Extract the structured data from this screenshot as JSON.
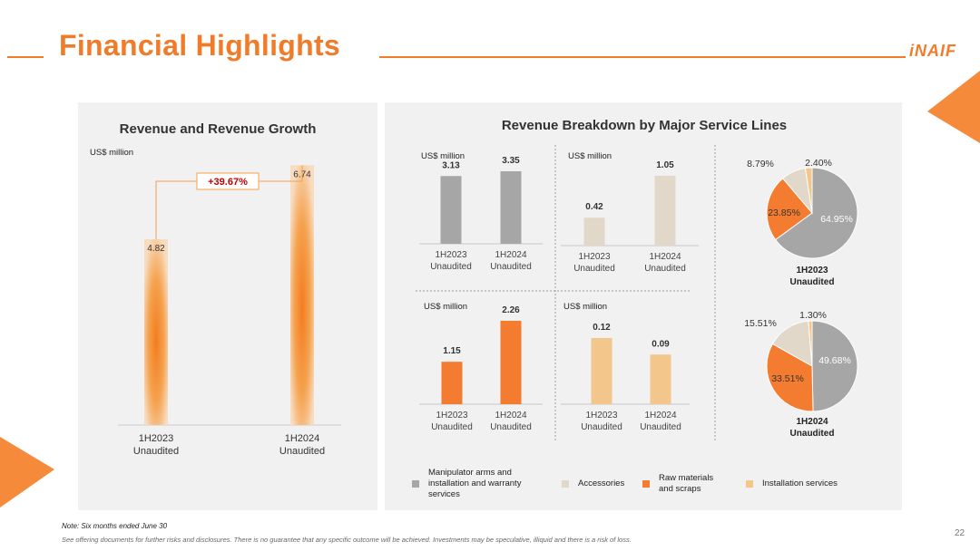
{
  "header": {
    "title": "Financial Highlights",
    "logo_text": "iNAIF"
  },
  "left_panel": {
    "title": "Revenue and Revenue Growth",
    "unit": "US$ million",
    "growth_label": "+39.67%"
  },
  "right_panel": {
    "title": "Revenue Breakdown by Major Service Lines"
  },
  "colors": {
    "accent": "#f07c2a",
    "gray_series": "#a6a6a6",
    "accessories": "#e2d8c9",
    "raw_materials": "#f47c30",
    "installation": "#f3c78b"
  },
  "chart_data": [
    {
      "id": "revenue",
      "type": "bar",
      "title": "Revenue and Revenue Growth",
      "ylabel": "US$ million",
      "categories": [
        "1H2023",
        "1H2024"
      ],
      "category_sublabels": [
        "Unaudited",
        "Unaudited"
      ],
      "values": [
        4.82,
        6.74
      ],
      "value_labels": [
        "4.82",
        "6.74"
      ],
      "annotation": "+39.67%",
      "ylim": [
        0,
        7.5
      ]
    },
    {
      "id": "manipulator",
      "type": "bar",
      "ylabel": "US$ million",
      "series_name": "Manipulator arms and installation and warranty services",
      "categories": [
        "1H2023",
        "1H2024"
      ],
      "category_sublabels": [
        "Unaudited",
        "Unaudited"
      ],
      "values": [
        3.13,
        3.35
      ],
      "value_labels": [
        "3.13",
        "3.35"
      ],
      "ylim": [
        0,
        3.8
      ]
    },
    {
      "id": "accessories",
      "type": "bar",
      "ylabel": "US$ million",
      "series_name": "Accessories",
      "categories": [
        "1H2023",
        "1H2024"
      ],
      "category_sublabels": [
        "Unaudited",
        "Unaudited"
      ],
      "values": [
        0.42,
        1.05
      ],
      "value_labels": [
        "0.42",
        "1.05"
      ],
      "ylim": [
        0,
        1.2
      ]
    },
    {
      "id": "raw_materials",
      "type": "bar",
      "ylabel": "US$ million",
      "series_name": "Raw materials and scraps",
      "categories": [
        "1H2023",
        "1H2024"
      ],
      "category_sublabels": [
        "Unaudited",
        "Unaudited"
      ],
      "values": [
        1.15,
        2.26
      ],
      "value_labels": [
        "1.15",
        "2.26"
      ],
      "ylim": [
        0,
        2.4
      ]
    },
    {
      "id": "installation",
      "type": "bar",
      "ylabel": "US$ million",
      "series_name": "Installation services",
      "categories": [
        "1H2023",
        "1H2024"
      ],
      "category_sublabels": [
        "Unaudited",
        "Unaudited"
      ],
      "values": [
        0.12,
        0.09
      ],
      "value_labels": [
        "0.12",
        "0.09"
      ],
      "ylim": [
        0,
        0.14
      ]
    },
    {
      "id": "pie_1h2023",
      "type": "pie",
      "title": "1H2023",
      "subtitle": "Unaudited",
      "labels": [
        "Manipulator arms and installation and warranty services",
        "Raw materials and scraps",
        "Accessories",
        "Installation services"
      ],
      "values": [
        64.95,
        23.85,
        8.79,
        2.4
      ],
      "value_labels": [
        "64.95%",
        "23.85%",
        "8.79%",
        "2.40%"
      ]
    },
    {
      "id": "pie_1h2024",
      "type": "pie",
      "title": "1H2024",
      "subtitle": "Unaudited",
      "labels": [
        "Manipulator arms and installation and warranty services",
        "Raw materials and scraps",
        "Accessories",
        "Installation services"
      ],
      "values": [
        49.68,
        33.51,
        15.51,
        1.3
      ],
      "value_labels": [
        "49.68%",
        "33.51%",
        "15.51%",
        "1.30%"
      ]
    }
  ],
  "legend": [
    {
      "lines": [
        "Manipulator arms and",
        "installation and warranty",
        "services"
      ],
      "color": "#a6a6a6"
    },
    {
      "lines": [
        "Accessories"
      ],
      "color": "#e2d8c9"
    },
    {
      "lines": [
        "Raw materials",
        "and scraps"
      ],
      "color": "#f47c30"
    },
    {
      "lines": [
        "Installation services"
      ],
      "color": "#f3c78b"
    }
  ],
  "footer": {
    "note": "Note: Six months ended June 30",
    "disclaimer": "See offering documents for further risks and disclosures. There is no guarantee that any specific outcome will be achieved. Investments may be speculative, illiquid and there is a risk of loss.",
    "page_number": "22"
  }
}
